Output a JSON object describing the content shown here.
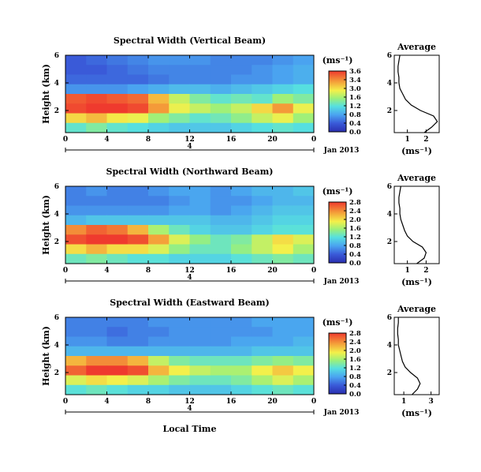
{
  "chart_data": [
    {
      "type": "heatmap",
      "title": "Spectral Width (Vertical Beam)",
      "ylabel": "Height (km)",
      "xlabel": "",
      "x_ticks": [
        "0",
        "4",
        "8",
        "12",
        "16",
        "20",
        "0"
      ],
      "y_ticks": [
        "6",
        "4",
        "2"
      ],
      "xlim": [
        0,
        24
      ],
      "ylim": [
        0.4,
        6
      ],
      "date_marker": "4",
      "date_label": "Jan 2013",
      "colorbar": {
        "unit": "(ms⁻¹)",
        "ticks": [
          "3.6",
          "3.4",
          "3.0",
          "1.6",
          "1.2",
          "0.8",
          "0.4",
          "0.0"
        ],
        "range": [
          0,
          3.6
        ]
      },
      "heatmap_rows": [
        {
          "height": 5.6,
          "values": [
            0.5,
            0.6,
            0.7,
            0.8,
            0.9,
            0.9,
            0.9,
            0.8,
            0.8,
            0.8,
            0.9,
            1.0
          ]
        },
        {
          "height": 4.8,
          "values": [
            0.5,
            0.5,
            0.6,
            0.7,
            0.8,
            0.8,
            0.8,
            0.8,
            0.8,
            0.9,
            1.0,
            1.1
          ]
        },
        {
          "height": 4.0,
          "values": [
            0.6,
            0.6,
            0.6,
            0.6,
            0.7,
            0.8,
            0.8,
            0.8,
            0.9,
            0.9,
            1.0,
            1.1
          ]
        },
        {
          "height": 3.2,
          "values": [
            0.9,
            0.9,
            0.9,
            1.0,
            1.1,
            1.2,
            1.2,
            1.1,
            1.2,
            1.3,
            1.4,
            1.5
          ]
        },
        {
          "height": 2.4,
          "values": [
            3.4,
            3.5,
            3.4,
            3.3,
            2.8,
            2.2,
            1.8,
            1.6,
            1.7,
            1.6,
            2.0,
            1.8
          ]
        },
        {
          "height": 1.8,
          "values": [
            3.5,
            3.6,
            3.6,
            3.5,
            3.0,
            2.4,
            2.2,
            2.0,
            2.2,
            2.6,
            3.0,
            2.4
          ]
        },
        {
          "height": 1.2,
          "values": [
            2.6,
            2.8,
            2.5,
            2.4,
            2.0,
            1.8,
            1.6,
            1.7,
            1.9,
            2.2,
            2.4,
            2.0
          ]
        },
        {
          "height": 0.6,
          "values": [
            1.6,
            1.8,
            1.6,
            1.5,
            1.4,
            1.3,
            1.3,
            1.3,
            1.4,
            1.5,
            1.6,
            1.5
          ]
        }
      ],
      "average": {
        "title": "Average",
        "xlabel": "(ms⁻¹)",
        "x_ticks": [
          "1",
          "2"
        ],
        "y_ticks": [
          "6",
          "4",
          "2"
        ],
        "heights": [
          0.4,
          0.8,
          1.2,
          1.6,
          2.0,
          2.4,
          2.8,
          3.2,
          3.6,
          4.0,
          4.4,
          4.8,
          5.2,
          5.6,
          6.0
        ],
        "values": [
          1.9,
          2.3,
          2.6,
          2.4,
          1.7,
          1.2,
          0.9,
          0.75,
          0.6,
          0.55,
          0.55,
          0.5,
          0.5,
          0.55,
          0.6
        ]
      }
    },
    {
      "type": "heatmap",
      "title": "Spectral Width (Northward Beam)",
      "ylabel": "Height (km)",
      "xlabel": "",
      "x_ticks": [
        "0",
        "4",
        "8",
        "12",
        "16",
        "20",
        "0"
      ],
      "y_ticks": [
        "6",
        "4",
        "2"
      ],
      "xlim": [
        0,
        24
      ],
      "ylim": [
        0.4,
        6
      ],
      "date_marker": "4",
      "date_label": "Jan 2013",
      "colorbar": {
        "unit": "(ms⁻¹)",
        "ticks": [
          "2.8",
          "2.4",
          "2.0",
          "1.6",
          "1.2",
          "0.8",
          "0.4",
          "0.0"
        ],
        "range": [
          0,
          2.8
        ]
      },
      "heatmap_rows": [
        {
          "height": 5.6,
          "values": [
            0.6,
            0.7,
            0.6,
            0.6,
            0.7,
            0.8,
            0.8,
            0.7,
            0.8,
            0.9,
            0.9,
            1.0
          ]
        },
        {
          "height": 4.8,
          "values": [
            0.6,
            0.6,
            0.6,
            0.6,
            0.6,
            0.7,
            0.8,
            0.7,
            0.7,
            0.8,
            0.9,
            0.9
          ]
        },
        {
          "height": 4.0,
          "values": [
            0.7,
            0.7,
            0.7,
            0.7,
            0.7,
            0.8,
            0.8,
            0.7,
            0.8,
            0.9,
            1.0,
            1.0
          ]
        },
        {
          "height": 3.2,
          "values": [
            0.9,
            1.0,
            1.0,
            1.0,
            1.0,
            1.0,
            1.0,
            0.9,
            0.9,
            1.0,
            1.1,
            1.1
          ]
        },
        {
          "height": 2.4,
          "values": [
            2.4,
            2.6,
            2.5,
            2.2,
            1.6,
            1.3,
            1.1,
            1.0,
            1.0,
            1.1,
            1.2,
            1.2
          ]
        },
        {
          "height": 1.8,
          "values": [
            2.7,
            2.8,
            2.8,
            2.7,
            2.3,
            1.8,
            1.5,
            1.3,
            1.4,
            1.7,
            2.0,
            1.8
          ]
        },
        {
          "height": 1.2,
          "values": [
            2.0,
            2.2,
            2.0,
            2.0,
            1.8,
            1.5,
            1.3,
            1.3,
            1.5,
            1.7,
            1.9,
            1.6
          ]
        },
        {
          "height": 0.6,
          "values": [
            1.3,
            1.4,
            1.3,
            1.2,
            1.2,
            1.1,
            1.1,
            1.1,
            1.2,
            1.3,
            1.4,
            1.3
          ]
        }
      ],
      "average": {
        "title": "Average",
        "xlabel": "(ms⁻¹)",
        "x_ticks": [
          "1",
          "2"
        ],
        "y_ticks": [
          "6",
          "4",
          "2"
        ],
        "heights": [
          0.4,
          0.8,
          1.2,
          1.6,
          2.0,
          2.4,
          2.8,
          3.2,
          3.6,
          4.0,
          4.4,
          4.8,
          5.2,
          5.6,
          6.0
        ],
        "values": [
          1.5,
          1.9,
          2.0,
          1.8,
          1.3,
          1.0,
          0.85,
          0.75,
          0.65,
          0.6,
          0.6,
          0.55,
          0.55,
          0.6,
          0.65
        ]
      }
    },
    {
      "type": "heatmap",
      "title": "Spectral Width (Eastward Beam)",
      "ylabel": "Height (km)",
      "xlabel": "Local Time",
      "x_ticks": [
        "0",
        "4",
        "8",
        "12",
        "16",
        "20",
        "0"
      ],
      "y_ticks": [
        "6",
        "4",
        "2"
      ],
      "xlim": [
        0,
        24
      ],
      "ylim": [
        0.4,
        6
      ],
      "date_marker": "4",
      "date_label": "Jan 2013",
      "colorbar": {
        "unit": "(ms⁻¹)",
        "ticks": [
          "2.8",
          "2.4",
          "2.0",
          "1.6",
          "1.2",
          "0.8",
          "0.4",
          "0.0"
        ],
        "range": [
          0,
          2.8
        ]
      },
      "heatmap_rows": [
        {
          "height": 5.6,
          "values": [
            0.6,
            0.6,
            0.6,
            0.6,
            0.7,
            0.7,
            0.7,
            0.7,
            0.7,
            0.8,
            0.8,
            0.8
          ]
        },
        {
          "height": 4.8,
          "values": [
            0.6,
            0.6,
            0.5,
            0.6,
            0.6,
            0.7,
            0.7,
            0.7,
            0.7,
            0.7,
            0.8,
            0.8
          ]
        },
        {
          "height": 4.0,
          "values": [
            0.7,
            0.7,
            0.6,
            0.6,
            0.7,
            0.7,
            0.7,
            0.7,
            0.8,
            0.8,
            0.8,
            0.9
          ]
        },
        {
          "height": 3.2,
          "values": [
            0.9,
            0.9,
            0.9,
            0.9,
            0.9,
            0.9,
            0.9,
            0.9,
            0.9,
            1.0,
            1.0,
            1.0
          ]
        },
        {
          "height": 2.4,
          "values": [
            2.2,
            2.4,
            2.4,
            2.2,
            1.7,
            1.4,
            1.3,
            1.3,
            1.3,
            1.4,
            1.5,
            1.4
          ]
        },
        {
          "height": 1.8,
          "values": [
            2.6,
            2.8,
            2.8,
            2.7,
            2.2,
            1.9,
            1.7,
            1.6,
            1.6,
            1.9,
            2.1,
            1.9
          ]
        },
        {
          "height": 1.2,
          "values": [
            1.8,
            2.0,
            1.9,
            1.8,
            1.6,
            1.4,
            1.3,
            1.3,
            1.4,
            1.6,
            1.8,
            1.6
          ]
        },
        {
          "height": 0.6,
          "values": [
            1.2,
            1.3,
            1.2,
            1.1,
            1.1,
            1.0,
            1.0,
            1.0,
            1.1,
            1.2,
            1.3,
            1.2
          ]
        }
      ],
      "average": {
        "title": "Average",
        "xlabel": "(ms⁻¹)",
        "x_ticks": [
          "1",
          "3"
        ],
        "y_ticks": [
          "6",
          "4",
          "2"
        ],
        "heights": [
          0.4,
          0.8,
          1.2,
          1.6,
          2.0,
          2.4,
          2.8,
          3.2,
          3.6,
          4.0,
          4.4,
          4.8,
          5.2,
          5.6,
          6.0
        ],
        "values": [
          1.6,
          2.0,
          2.2,
          2.0,
          1.5,
          1.1,
          0.9,
          0.8,
          0.7,
          0.6,
          0.6,
          0.55,
          0.55,
          0.6,
          0.6
        ]
      }
    }
  ]
}
